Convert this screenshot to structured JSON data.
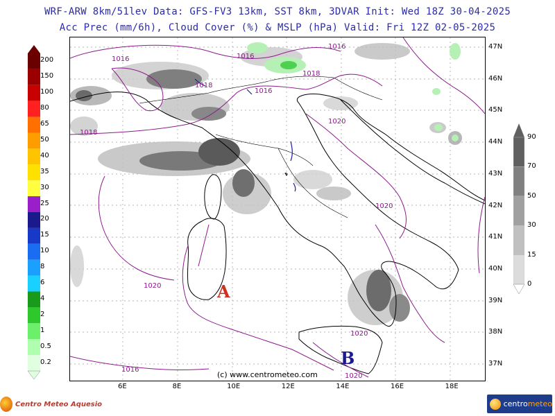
{
  "header": {
    "line1": "WRF-ARW 8km/51lev  Data: GFS-FV3 13km, SST 8km, 3DVAR  Init: Wed 18Z 30-04-2025",
    "line2": "Acc Prec (mm/6h), Cloud Cover (%) & MSLP (hPa)  Valid: Fri 12Z 02-05-2025"
  },
  "lat_labels": [
    "47N",
    "46N",
    "45N",
    "44N",
    "43N",
    "42N",
    "41N",
    "40N",
    "39N",
    "38N",
    "37N"
  ],
  "lon_labels": [
    "6E",
    "8E",
    "10E",
    "12E",
    "14E",
    "16E",
    "18E"
  ],
  "precip_scale": {
    "labels": [
      "200",
      "150",
      "100",
      "80",
      "65",
      "50",
      "40",
      "35",
      "30",
      "25",
      "20",
      "15",
      "10",
      "8",
      "6",
      "4",
      "2",
      "1",
      "0.5",
      "0.2"
    ],
    "colors": [
      "#6b0000",
      "#9b0000",
      "#c80000",
      "#ff2020",
      "#ff7000",
      "#ff9c00",
      "#ffc400",
      "#ffe000",
      "#ffff40",
      "#9a1fc8",
      "#1a1a8c",
      "#1838c8",
      "#1a6cf0",
      "#1aa0ff",
      "#1ad0ff",
      "#1a9a1a",
      "#2cc82c",
      "#6cf06c",
      "#b0ffb0",
      "#e0ffe0"
    ]
  },
  "cloud_scale": {
    "labels": [
      "90",
      "70",
      "50",
      "30",
      "15",
      "0"
    ],
    "colors": [
      "#606060",
      "#808080",
      "#a0a0a0",
      "#c0c0c0",
      "#dcdcdc",
      "#ffffff"
    ]
  },
  "isobar_labels": [
    {
      "text": "1016"
    },
    {
      "text": "1016"
    },
    {
      "text": "1016"
    },
    {
      "text": "1018"
    },
    {
      "text": "1018"
    },
    {
      "text": "1018"
    },
    {
      "text": "1016"
    },
    {
      "text": "1020"
    },
    {
      "text": "1020"
    },
    {
      "text": "1020"
    },
    {
      "text": "1020"
    },
    {
      "text": "1016"
    },
    {
      "text": "1020"
    }
  ],
  "pressure_centers": {
    "high": {
      "label": "A",
      "color": "#d03020"
    },
    "low": {
      "label": "B",
      "color": "#1a1a8c"
    }
  },
  "credit": "(c) www.centrometeo.com",
  "logos": {
    "left": "Centro Meteo Aquesio",
    "right_a": "centro",
    "right_b": "meteo"
  },
  "colors": {
    "title": "#2b2ba8",
    "isobar": "#8c1a8c",
    "coast": "#000000"
  }
}
